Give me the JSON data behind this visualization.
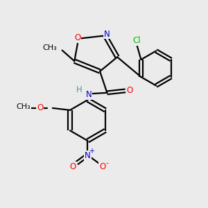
{
  "bg_color": "#ebebeb",
  "atom_colors": {
    "C": "#000000",
    "N": "#0000cc",
    "O": "#ff0000",
    "H": "#4a9999",
    "Cl": "#00bb00"
  },
  "lw": 1.6
}
